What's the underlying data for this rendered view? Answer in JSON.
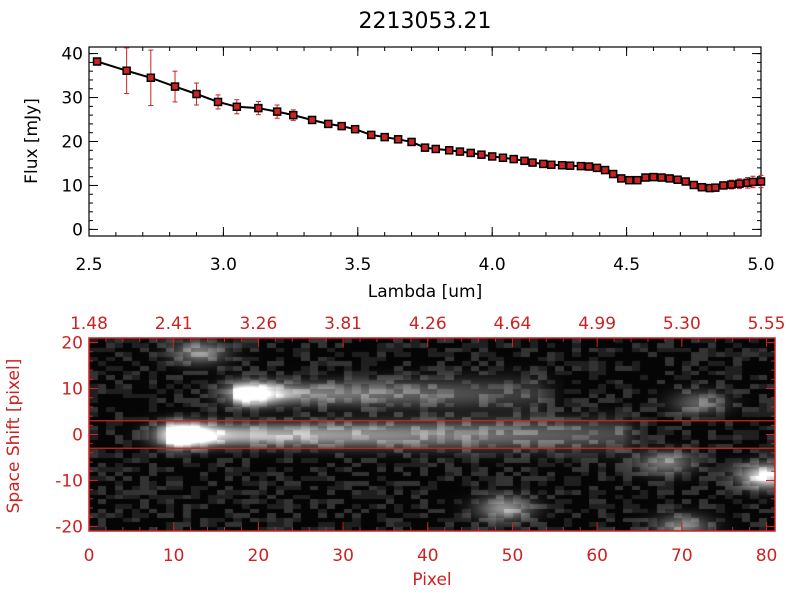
{
  "chart_data": [
    {
      "type": "line",
      "title": "2213053.21",
      "xlabel": "Lambda [um]",
      "ylabel": "Flux [mJy]",
      "xlim": [
        2.5,
        5.0
      ],
      "ylim": [
        -1.5,
        41.5
      ],
      "x_ticks": [
        "2.5",
        "3.0",
        "3.5",
        "4.0",
        "4.5",
        "5.0"
      ],
      "y_ticks": [
        "0",
        "10",
        "20",
        "30",
        "40"
      ],
      "x_tick_values": [
        2.5,
        3.0,
        3.5,
        4.0,
        4.5,
        5.0
      ],
      "y_tick_values": [
        0,
        10,
        20,
        30,
        40
      ],
      "line_color": "#000000",
      "marker_color": "#cc2222",
      "errorbar_color": "#cc2222",
      "series": [
        {
          "x": [
            2.53,
            2.64,
            2.73,
            2.82,
            2.9,
            2.98,
            3.05,
            3.13,
            3.2,
            3.26,
            3.33,
            3.39,
            3.44,
            3.49,
            3.55,
            3.6,
            3.65,
            3.7,
            3.75,
            3.79,
            3.84,
            3.88,
            3.92,
            3.96,
            4.0,
            4.04,
            4.08,
            4.12,
            4.15,
            4.19,
            4.22,
            4.26,
            4.29,
            4.33,
            4.36,
            4.39,
            4.42,
            4.45,
            4.48,
            4.51,
            4.54,
            4.57,
            4.6,
            4.63,
            4.66,
            4.69,
            4.72,
            4.75,
            4.78,
            4.81,
            4.83,
            4.86,
            4.89,
            4.92,
            4.95,
            4.97,
            5.0
          ],
          "y": [
            38.2,
            36.1,
            34.5,
            32.5,
            30.8,
            29.0,
            27.9,
            27.6,
            26.8,
            26.0,
            24.9,
            24.0,
            23.5,
            22.8,
            21.5,
            21.0,
            20.5,
            19.9,
            18.6,
            18.3,
            18.0,
            17.7,
            17.4,
            17.0,
            16.6,
            16.3,
            16.0,
            15.6,
            15.2,
            14.9,
            14.7,
            14.6,
            14.5,
            14.4,
            14.3,
            14.0,
            13.5,
            12.6,
            11.6,
            11.2,
            11.2,
            11.8,
            11.9,
            11.8,
            11.6,
            11.3,
            10.9,
            10.1,
            9.6,
            9.4,
            9.5,
            10.0,
            10.2,
            10.4,
            10.6,
            10.8,
            10.9
          ],
          "yerr": [
            0.8,
            5.2,
            6.3,
            3.5,
            2.5,
            1.6,
            1.6,
            1.5,
            1.5,
            1.2,
            0.8,
            0.7,
            0.5,
            0.4,
            0.4,
            0.4,
            0.4,
            0.4,
            0.4,
            0.4,
            0.4,
            0.4,
            0.4,
            0.4,
            0.4,
            0.4,
            0.4,
            0.4,
            0.4,
            0.4,
            0.4,
            0.4,
            0.4,
            0.4,
            0.4,
            0.4,
            0.4,
            0.4,
            0.4,
            0.4,
            0.4,
            0.4,
            0.4,
            0.4,
            0.4,
            0.4,
            0.4,
            0.5,
            0.6,
            0.6,
            0.6,
            0.8,
            1.0,
            1.1,
            1.2,
            1.3,
            1.4
          ]
        }
      ]
    },
    {
      "type": "heatmap",
      "xlabel": "Pixel",
      "ylabel": "Space Shift [pixel]",
      "xlim": [
        0,
        81
      ],
      "ylim": [
        -21,
        21
      ],
      "x_ticks": [
        "0",
        "10",
        "20",
        "30",
        "40",
        "50",
        "60",
        "70",
        "80"
      ],
      "y_ticks": [
        "20",
        "10",
        "0",
        "-10",
        "-20"
      ],
      "x_tick_values": [
        0,
        10,
        20,
        30,
        40,
        50,
        60,
        70,
        80
      ],
      "y_tick_values": [
        20,
        10,
        0,
        -10,
        -20
      ],
      "top_axis_ticks": [
        "1.48",
        "2.41",
        "3.26",
        "3.81",
        "4.26",
        "4.64",
        "4.99",
        "5.30",
        "5.55"
      ],
      "top_axis_tick_positions": [
        0,
        10,
        20,
        30,
        40,
        50,
        60,
        70,
        80
      ],
      "extraction_window_lines": [
        3,
        -3
      ],
      "axis_color": "#cc2222",
      "colormap": "grayscale",
      "sources": [
        {
          "x": 11,
          "y": 0,
          "peak": 1.0
        },
        {
          "x": 19,
          "y": 9,
          "peak": 0.75
        },
        {
          "x": 13,
          "y": 18,
          "peak": 0.45
        },
        {
          "x": 49,
          "y": -16,
          "peak": 0.55
        },
        {
          "x": 68,
          "y": -6,
          "peak": 0.45
        },
        {
          "x": 80,
          "y": -9,
          "peak": 0.9
        },
        {
          "x": 72,
          "y": 7,
          "peak": 0.35
        },
        {
          "x": 70,
          "y": -20,
          "peak": 0.45
        }
      ],
      "trace": {
        "y": 0,
        "x_start": 11,
        "x_end": 63,
        "peak_start": 1.0,
        "peak_end": 0.35
      },
      "secondary_trace": {
        "y": 9,
        "x_start": 19,
        "x_end": 53,
        "peak_start": 0.75,
        "peak_end": 0.25
      }
    }
  ]
}
